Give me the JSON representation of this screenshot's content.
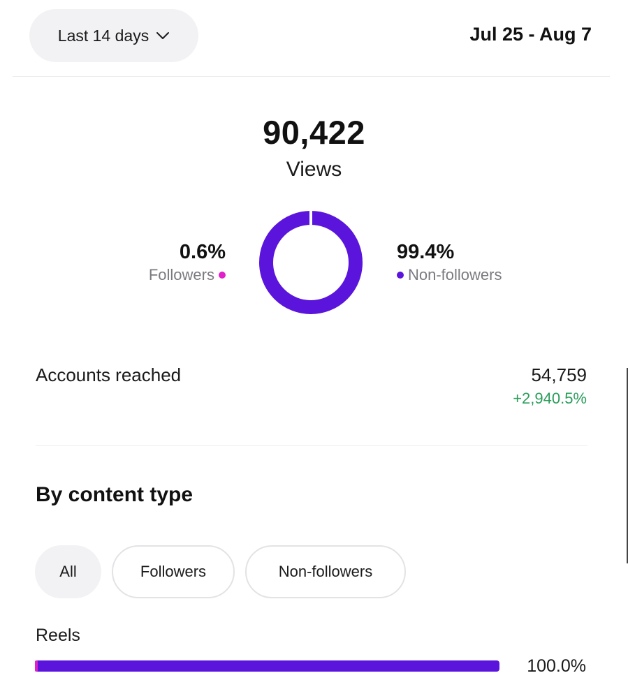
{
  "header": {
    "range_label": "Last 14 days",
    "date_span": "Jul 25 - Aug 7"
  },
  "views": {
    "value": "90,422",
    "label": "Views",
    "followers": {
      "pct_text": "0.6%",
      "label": "Followers",
      "fraction": 0.006,
      "color": "#e020c8"
    },
    "non_followers": {
      "pct_text": "99.4%",
      "label": "Non-followers",
      "fraction": 0.994,
      "color": "#5a14dc"
    }
  },
  "reach": {
    "label": "Accounts reached",
    "value": "54,759",
    "change": "+2,940.5%",
    "change_color": "#2a9d5a"
  },
  "content_type": {
    "title": "By content type",
    "filters": [
      {
        "label": "All",
        "selected": true
      },
      {
        "label": "Followers",
        "selected": false
      },
      {
        "label": "Non-followers",
        "selected": false
      }
    ],
    "rows": [
      {
        "label": "Reels",
        "pct_text": "100.0%",
        "fraction": 1.0,
        "followers_fraction": 0.006
      }
    ]
  },
  "icons": {
    "range_dropdown": "chevron-down-icon"
  }
}
